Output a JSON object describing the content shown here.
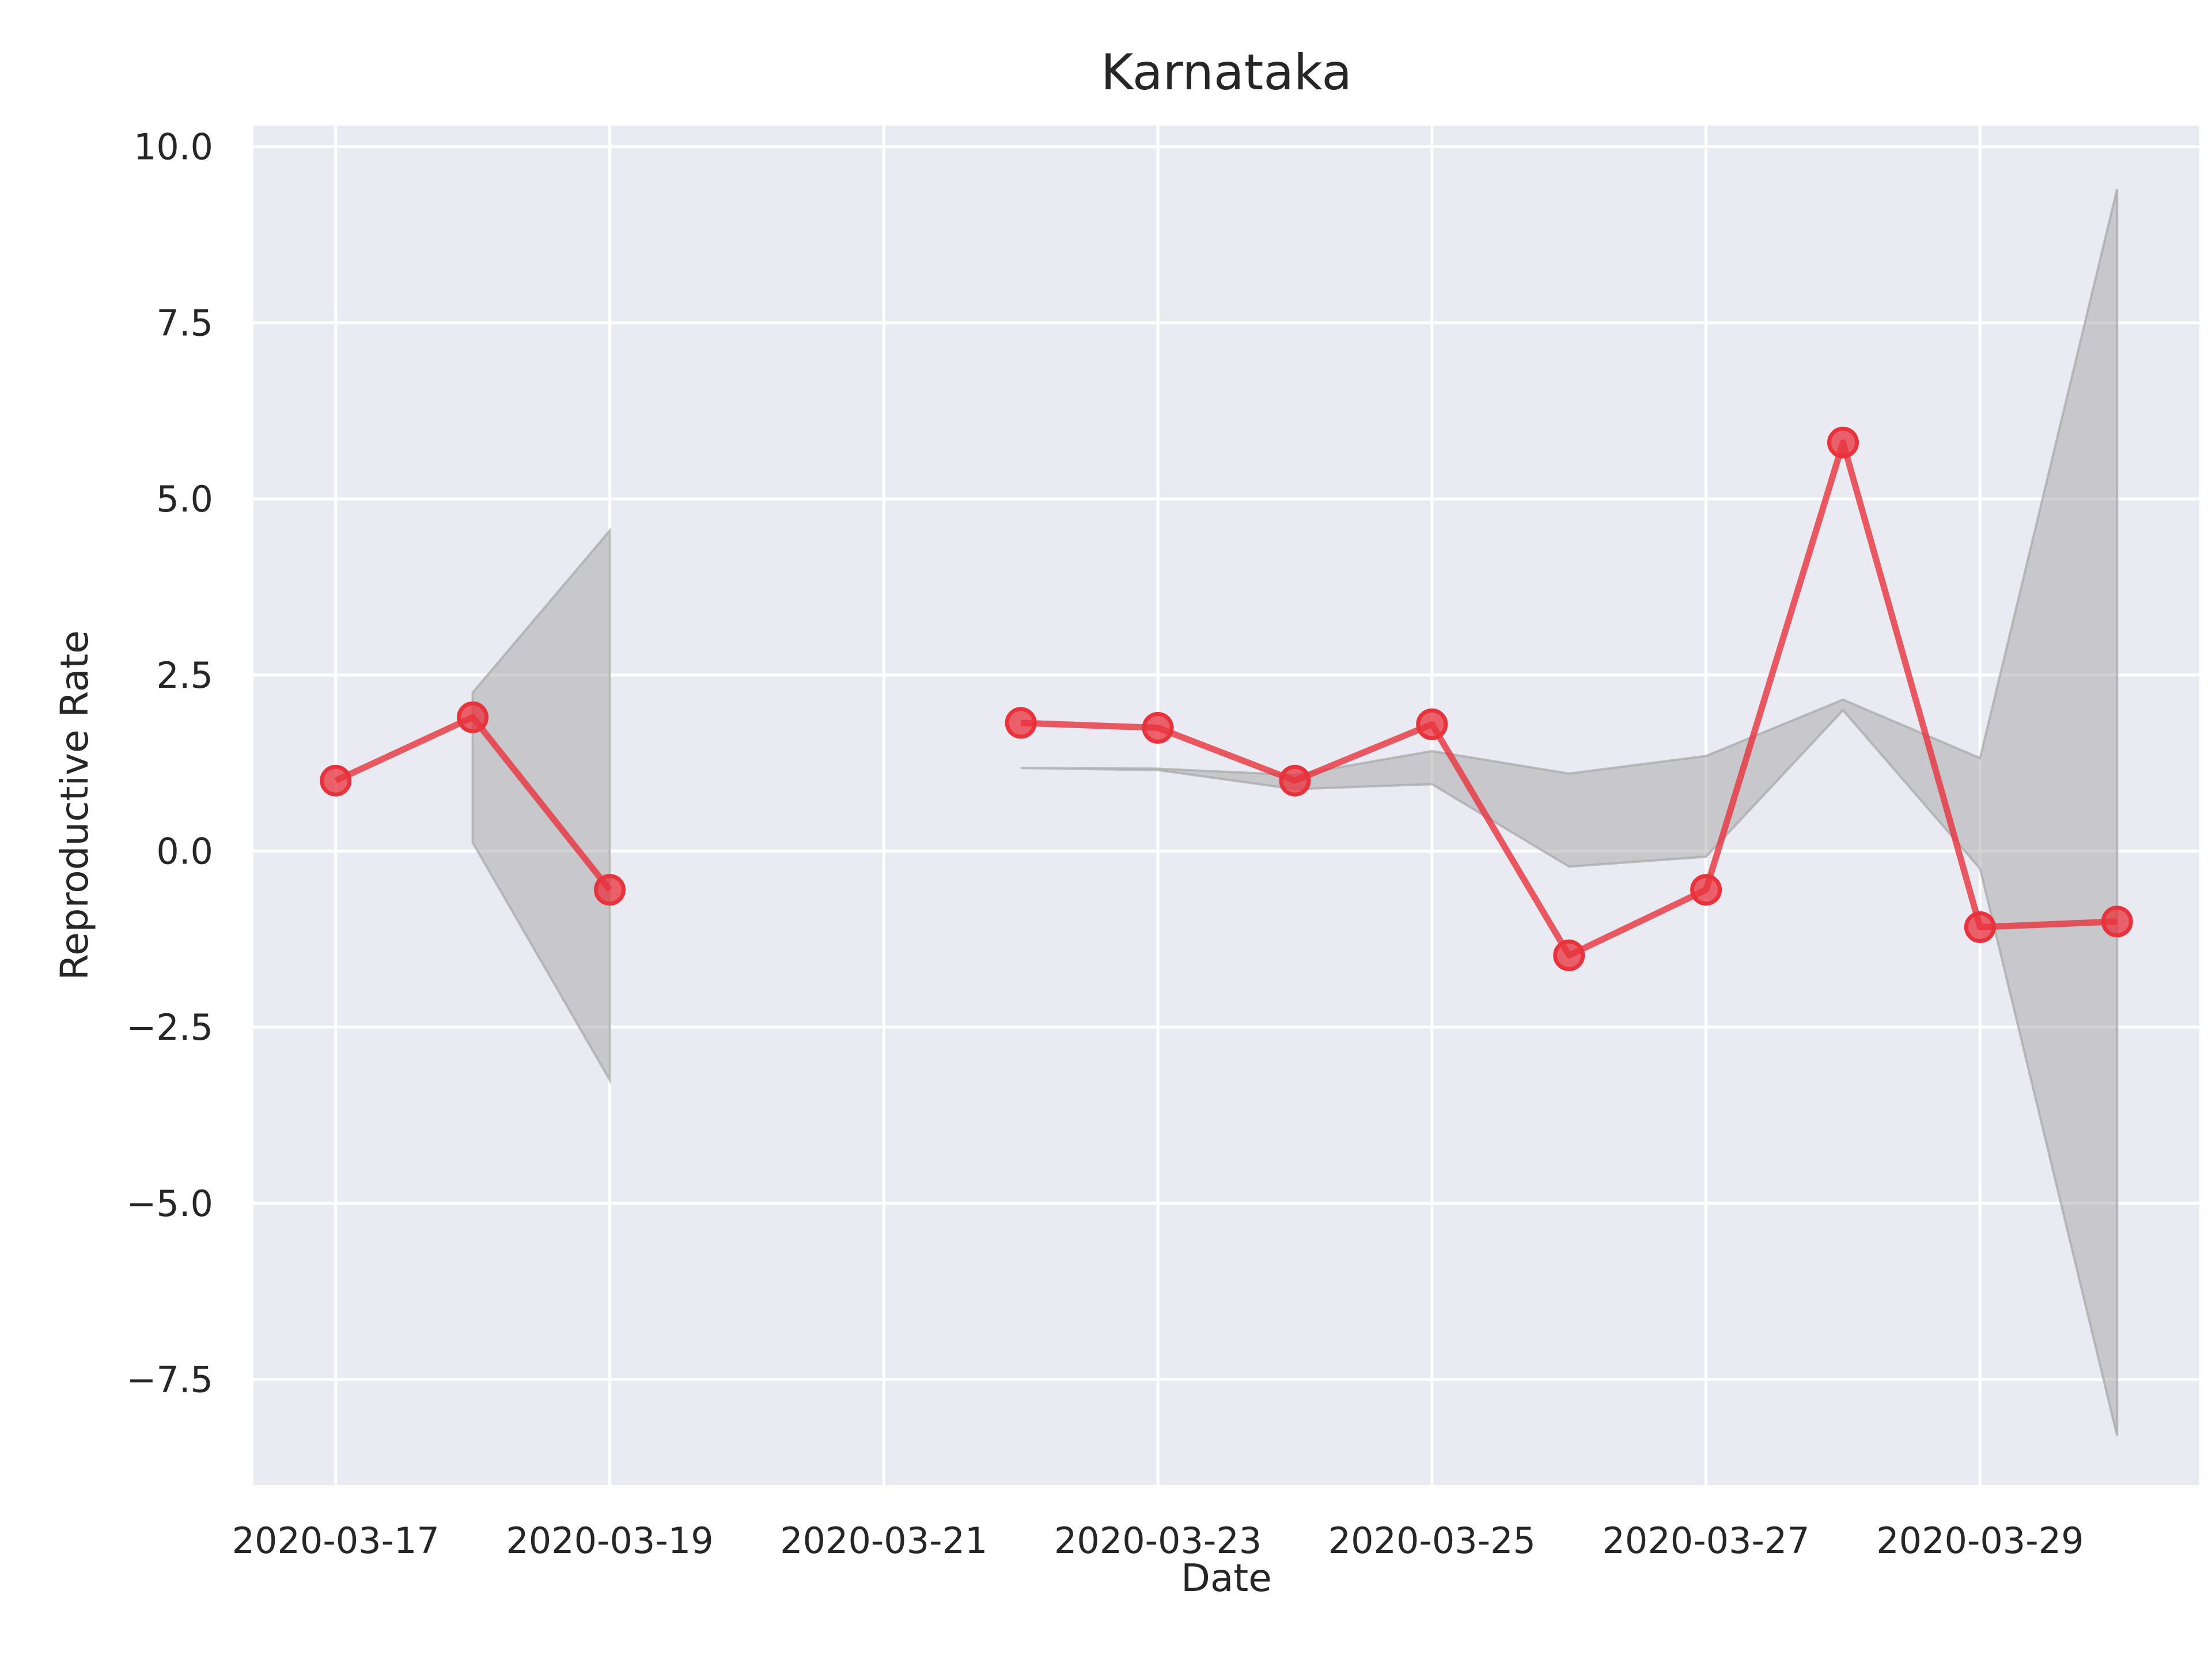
{
  "chart_data": {
    "type": "line",
    "title": "Karnataka",
    "xlabel": "Date",
    "ylabel": "Reproductive Rate",
    "x_ticks": [
      "2020-03-17",
      "2020-03-19",
      "2020-03-21",
      "2020-03-23",
      "2020-03-25",
      "2020-03-27",
      "2020-03-29"
    ],
    "y_ticks": [
      10.0,
      7.5,
      5.0,
      2.5,
      0.0,
      -2.5,
      -5.0,
      -7.5
    ],
    "y_tick_labels": [
      "10.0",
      "7.5",
      "5.0",
      "2.5",
      "0.0",
      "−2.5",
      "−5.0",
      "−7.5"
    ],
    "xlim": [
      "2020-03-16.4",
      "2020-03-30.6"
    ],
    "ylim": [
      -9.0,
      10.3
    ],
    "grid": true,
    "background_color": "#eaeaf2",
    "grid_color": "#ffffff",
    "line_color": "#e8323c",
    "band_color": "#a6a6a6",
    "series": [
      {
        "segments": [
          [
            {
              "date": "2020-03-17",
              "y": 1.0,
              "lower": null,
              "upper": null
            },
            {
              "date": "2020-03-18",
              "y": 1.9,
              "lower": 0.12,
              "upper": 2.25
            },
            {
              "date": "2020-03-19",
              "y": -0.55,
              "lower": -3.25,
              "upper": 4.55
            }
          ],
          [
            {
              "date": "2020-03-22",
              "y": 1.82,
              "lower": 1.18,
              "upper": 1.18
            },
            {
              "date": "2020-03-23",
              "y": 1.75,
              "lower": 1.15,
              "upper": 1.17
            },
            {
              "date": "2020-03-24",
              "y": 1.0,
              "lower": 0.88,
              "upper": 1.08
            },
            {
              "date": "2020-03-25",
              "y": 1.8,
              "lower": 0.95,
              "upper": 1.42
            },
            {
              "date": "2020-03-26",
              "y": -1.48,
              "lower": -0.22,
              "upper": 1.1
            },
            {
              "date": "2020-03-27",
              "y": -0.55,
              "lower": -0.08,
              "upper": 1.35
            },
            {
              "date": "2020-03-28",
              "y": 5.8,
              "lower": 2.0,
              "upper": 2.15
            },
            {
              "date": "2020-03-29",
              "y": -1.08,
              "lower": -0.25,
              "upper": 1.32
            },
            {
              "date": "2020-03-30",
              "y": -1.0,
              "lower": -8.3,
              "upper": 9.4
            }
          ]
        ]
      }
    ]
  }
}
